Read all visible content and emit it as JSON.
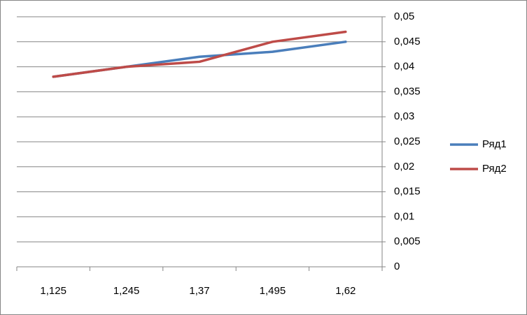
{
  "chart_data": {
    "type": "line",
    "categories": [
      "1,125",
      "1,245",
      "1,37",
      "1,495",
      "1,62"
    ],
    "series": [
      {
        "name": "Ряд1",
        "color": "#4a7ebb",
        "values": [
          0.038,
          0.04,
          0.042,
          0.043,
          0.045
        ]
      },
      {
        "name": "Ряд2",
        "color": "#be4b48",
        "values": [
          0.038,
          0.04,
          0.041,
          0.045,
          0.047
        ]
      }
    ],
    "ylim": [
      0,
      0.05
    ],
    "yticks": [
      0,
      {
        "value": 0.005,
        "label": "0,005"
      },
      {
        "value": 0.01,
        "label": "0,01"
      },
      {
        "value": 0.015,
        "label": "0,015"
      },
      {
        "value": 0.02,
        "label": "0,02"
      },
      {
        "value": 0.025,
        "label": "0,025"
      },
      {
        "value": 0.03,
        "label": "0,03"
      },
      {
        "value": 0.035,
        "label": "0,035"
      },
      {
        "value": 0.04,
        "label": "0,04"
      },
      {
        "value": 0.045,
        "label": "0,045"
      },
      {
        "value": 0.05,
        "label": "0,05"
      }
    ],
    "grid": true,
    "legend": "right"
  }
}
